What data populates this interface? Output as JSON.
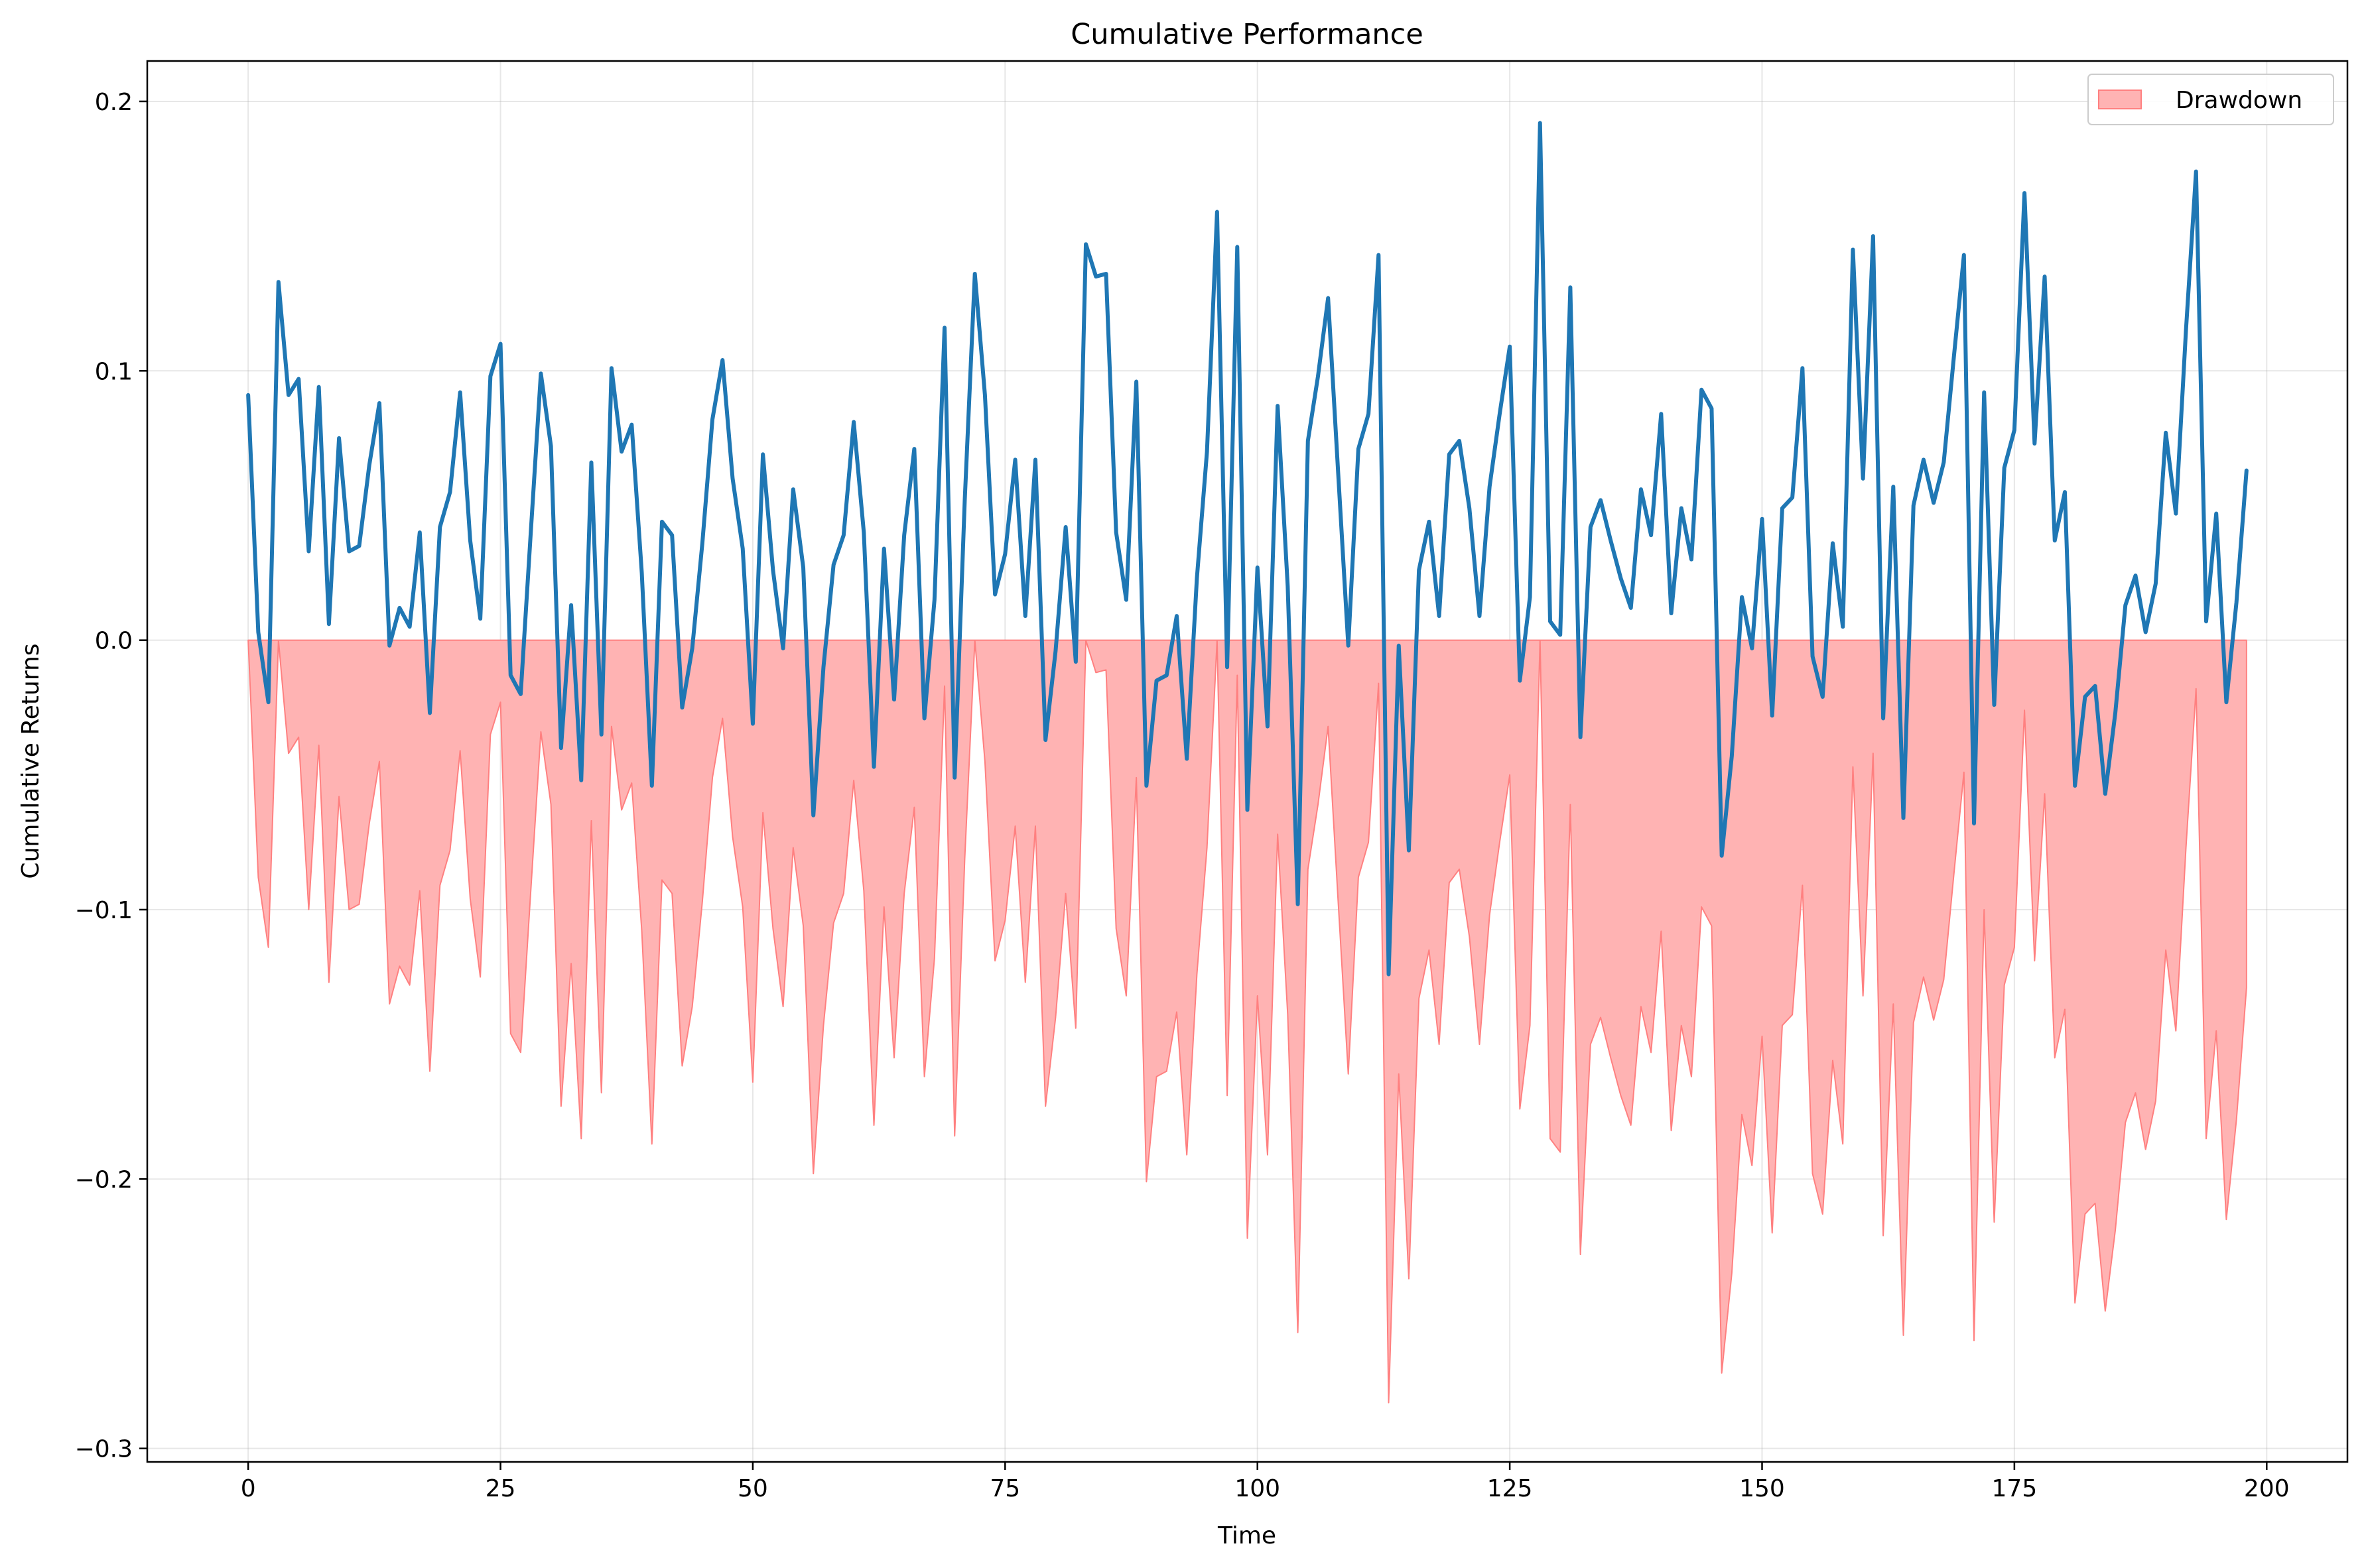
{
  "chart_data": {
    "type": "line",
    "title": "Cumulative Performance",
    "xlabel": "Time",
    "ylabel": "Cumulative Returns",
    "xlim": [
      -10,
      208
    ],
    "ylim": [
      -0.305,
      0.215
    ],
    "xticks": [
      0,
      25,
      50,
      75,
      100,
      125,
      150,
      175,
      200
    ],
    "yticks": [
      0.2,
      0.1,
      0.0,
      -0.1,
      -0.2,
      -0.3
    ],
    "ytick_labels": [
      "0.2",
      "0.1",
      "0.0",
      "−0.1",
      "−0.2",
      "−0.3"
    ],
    "grid": true,
    "legend": {
      "placement": "top-right",
      "entries": [
        "Drawdown"
      ]
    },
    "colors": {
      "line": "#1f77b4",
      "drawdown_fill": "#ffb3b3",
      "drawdown_edge": "#ff8080"
    },
    "series": [
      {
        "values": [
          0.091,
          0.003,
          -0.023,
          0.133,
          0.091,
          0.097,
          0.033,
          0.094,
          0.006,
          0.075,
          0.033,
          0.035,
          0.065,
          0.088,
          -0.002,
          0.012,
          0.005,
          0.04,
          -0.027,
          0.042,
          0.055,
          0.092,
          0.037,
          0.008,
          0.098,
          0.11,
          -0.013,
          -0.02,
          0.04,
          0.099,
          0.072,
          -0.04,
          0.013,
          -0.052,
          0.066,
          -0.035,
          0.101,
          0.07,
          0.08,
          0.025,
          -0.054,
          0.044,
          0.039,
          -0.025,
          -0.003,
          0.036,
          0.082,
          0.104,
          0.06,
          0.034,
          -0.031,
          0.069,
          0.026,
          -0.003,
          0.056,
          0.027,
          -0.065,
          -0.01,
          0.028,
          0.039,
          0.081,
          0.04,
          -0.047,
          0.034,
          -0.022,
          0.039,
          0.071,
          -0.029,
          0.015,
          0.116,
          -0.051,
          0.052,
          0.136,
          0.091,
          0.017,
          0.032,
          0.067,
          0.009,
          0.067,
          -0.037,
          -0.004,
          0.042,
          -0.008,
          0.147,
          0.135,
          0.136,
          0.04,
          0.015,
          0.096,
          -0.054,
          -0.015,
          -0.013,
          0.009,
          -0.044,
          0.023,
          0.07,
          0.159,
          -0.01,
          0.146,
          -0.063,
          0.027,
          -0.032,
          0.087,
          0.02,
          -0.098,
          0.074,
          0.098,
          0.127,
          0.062,
          -0.002,
          0.071,
          0.084,
          0.143,
          -0.124,
          -0.002,
          -0.078,
          0.026,
          0.044,
          0.009,
          0.069,
          0.074,
          0.049,
          0.009,
          0.057,
          0.084,
          0.109,
          -0.015,
          0.016,
          0.192,
          0.007,
          0.002,
          0.131,
          -0.036,
          0.042,
          0.052,
          0.037,
          0.023,
          0.012,
          0.056,
          0.039,
          0.084,
          0.01,
          0.049,
          0.03,
          0.093,
          0.086,
          -0.08,
          -0.043,
          0.016,
          -0.003,
          0.045,
          -0.028,
          0.049,
          0.053,
          0.101,
          -0.006,
          -0.021,
          0.036,
          0.005,
          0.145,
          0.06,
          0.15,
          -0.029,
          0.057,
          -0.066,
          0.05,
          0.067,
          0.051,
          0.066,
          0.105,
          0.143,
          -0.068,
          0.092,
          -0.024,
          0.064,
          0.078,
          0.166,
          0.073,
          0.135,
          0.037,
          0.055,
          -0.054,
          -0.021,
          -0.017,
          -0.057,
          -0.027,
          0.013,
          0.024,
          0.003,
          0.021,
          0.077,
          0.047,
          0.115,
          0.174,
          0.007,
          0.047,
          -0.023,
          0.014,
          0.063
        ]
      },
      {
        "name": "Drawdown",
        "values": [
          0.0,
          -0.088,
          -0.114,
          0.0,
          -0.042,
          -0.036,
          -0.1,
          -0.039,
          -0.127,
          -0.058,
          -0.1,
          -0.098,
          -0.068,
          -0.045,
          -0.135,
          -0.121,
          -0.128,
          -0.093,
          -0.16,
          -0.091,
          -0.078,
          -0.041,
          -0.096,
          -0.125,
          -0.035,
          -0.023,
          -0.146,
          -0.153,
          -0.093,
          -0.034,
          -0.061,
          -0.173,
          -0.12,
          -0.185,
          -0.067,
          -0.168,
          -0.032,
          -0.063,
          -0.053,
          -0.108,
          -0.187,
          -0.089,
          -0.094,
          -0.158,
          -0.136,
          -0.097,
          -0.051,
          -0.029,
          -0.073,
          -0.099,
          -0.164,
          -0.064,
          -0.107,
          -0.136,
          -0.077,
          -0.106,
          -0.198,
          -0.143,
          -0.105,
          -0.094,
          -0.052,
          -0.093,
          -0.18,
          -0.099,
          -0.155,
          -0.094,
          -0.062,
          -0.162,
          -0.118,
          -0.017,
          -0.184,
          -0.081,
          0.0,
          -0.045,
          -0.119,
          -0.104,
          -0.069,
          -0.127,
          -0.069,
          -0.173,
          -0.14,
          -0.094,
          -0.144,
          0.0,
          -0.012,
          -0.011,
          -0.107,
          -0.132,
          -0.051,
          -0.201,
          -0.162,
          -0.16,
          -0.138,
          -0.191,
          -0.124,
          -0.077,
          0.0,
          -0.169,
          -0.013,
          -0.222,
          -0.132,
          -0.191,
          -0.072,
          -0.139,
          -0.257,
          -0.085,
          -0.061,
          -0.032,
          -0.097,
          -0.161,
          -0.088,
          -0.075,
          -0.016,
          -0.283,
          -0.161,
          -0.237,
          -0.133,
          -0.115,
          -0.15,
          -0.09,
          -0.085,
          -0.11,
          -0.15,
          -0.102,
          -0.075,
          -0.05,
          -0.174,
          -0.143,
          0.0,
          -0.185,
          -0.19,
          -0.061,
          -0.228,
          -0.15,
          -0.14,
          -0.155,
          -0.169,
          -0.18,
          -0.136,
          -0.153,
          -0.108,
          -0.182,
          -0.143,
          -0.162,
          -0.099,
          -0.106,
          -0.272,
          -0.235,
          -0.176,
          -0.195,
          -0.147,
          -0.22,
          -0.143,
          -0.139,
          -0.091,
          -0.198,
          -0.213,
          -0.156,
          -0.187,
          -0.047,
          -0.132,
          -0.042,
          -0.221,
          -0.135,
          -0.258,
          -0.142,
          -0.125,
          -0.141,
          -0.126,
          -0.087,
          -0.049,
          -0.26,
          -0.1,
          -0.216,
          -0.128,
          -0.114,
          -0.026,
          -0.119,
          -0.057,
          -0.155,
          -0.137,
          -0.246,
          -0.213,
          -0.209,
          -0.249,
          -0.219,
          -0.179,
          -0.168,
          -0.189,
          -0.171,
          -0.115,
          -0.145,
          -0.077,
          -0.018,
          -0.185,
          -0.145,
          -0.215,
          -0.178,
          -0.129
        ]
      }
    ]
  }
}
